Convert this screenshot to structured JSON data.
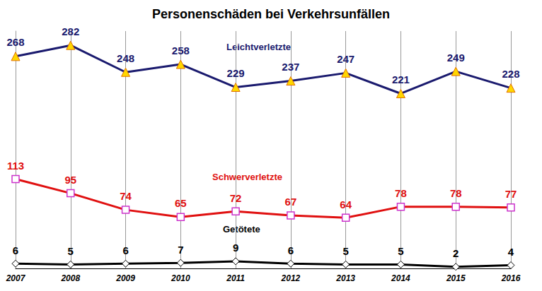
{
  "chart_data": {
    "type": "line",
    "title": "Personenschäden bei Verkehrsunfällen",
    "categories": [
      "2007",
      "2008",
      "2009",
      "2010",
      "2011",
      "2012",
      "2013",
      "2014",
      "2015",
      "2016"
    ],
    "series": [
      {
        "name": "Leichtverletzte",
        "color": "#1a1a6e",
        "marker": "triangle",
        "line_style": "solid",
        "values": [
          268,
          282,
          248,
          258,
          229,
          237,
          247,
          221,
          249,
          228
        ]
      },
      {
        "name": "Schwerverletzte",
        "color": "#e01010",
        "marker": "rect",
        "line_style": "solid",
        "values": [
          113,
          95,
          74,
          65,
          72,
          67,
          64,
          78,
          78,
          77
        ]
      },
      {
        "name": "Getötete",
        "color": "#000000",
        "marker": "diamond",
        "line_style": "solid",
        "values": [
          6,
          5,
          6,
          7,
          9,
          6,
          5,
          5,
          2,
          4
        ]
      }
    ],
    "ylim": [
      0,
      300
    ],
    "grid": true,
    "data_labels": true,
    "tick_labels": "x"
  }
}
